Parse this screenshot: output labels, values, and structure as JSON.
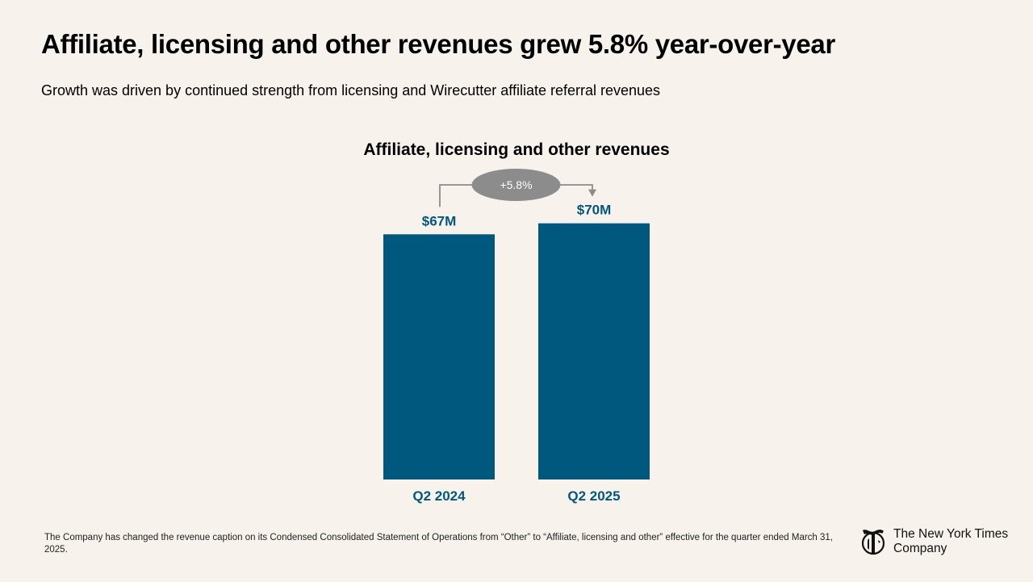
{
  "slide": {
    "headline": "Affiliate, licensing and other revenues grew 5.8% year-over-year",
    "subhead": "Growth was driven by continued strength from licensing and Wirecutter affiliate referral revenues",
    "footnote": "The Company has changed the revenue caption on its Condensed Consolidated Statement of Operations from “Other” to “Affiliate, licensing and other” effective for the quarter ended March 31, 2025."
  },
  "logo": {
    "line1": "The New York Times",
    "line2": "Company"
  },
  "chart_data": {
    "type": "bar",
    "title": "Affiliate, licensing and other revenues",
    "categories": [
      "Q2 2024",
      "Q2 2025"
    ],
    "values": [
      67,
      70
    ],
    "value_labels": [
      "$67M",
      "$70M"
    ],
    "unit": "$M",
    "growth_label": "+5.8%",
    "xlabel": "",
    "ylabel": "",
    "ylim": [
      0,
      75
    ],
    "grid": false,
    "colors": {
      "bar": "#00587e",
      "label": "#00587e",
      "annotation": "#8c8c8c",
      "annotation_text": "#ffffff"
    }
  }
}
